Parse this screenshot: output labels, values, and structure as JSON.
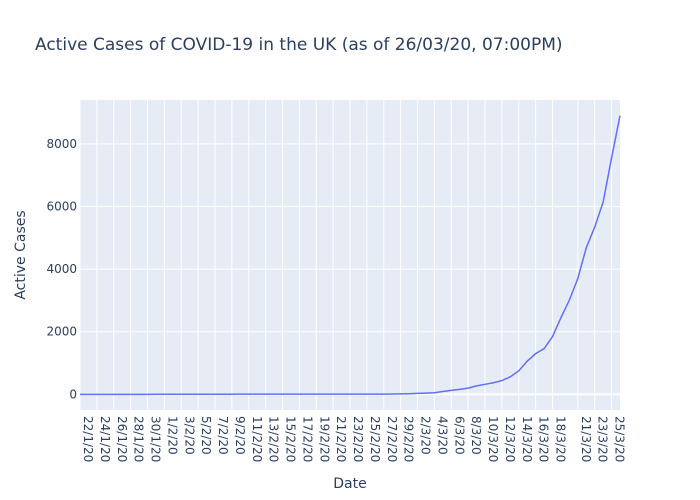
{
  "chart_data": {
    "type": "line",
    "title": "Active Cases of COVID-19 in the UK (as of 26/03/20, 07:00PM)",
    "xlabel": "Date",
    "ylabel": "Active Cases",
    "ylim": [
      -500,
      9400
    ],
    "yticks": [
      0,
      2000,
      4000,
      6000,
      8000
    ],
    "grid": true,
    "x_ticks": [
      "22/1/20",
      "24/1/20",
      "26/1/20",
      "28/1/20",
      "30/1/20",
      "1/2/20",
      "3/2/20",
      "5/2/20",
      "7/2/20",
      "9/2/20",
      "11/2/20",
      "13/2/20",
      "15/2/20",
      "17/2/20",
      "19/2/20",
      "21/2/20",
      "23/2/20",
      "25/2/20",
      "27/2/20",
      "29/2/20",
      "2/3/20",
      "4/3/20",
      "6/3/20",
      "8/3/20",
      "10/3/20",
      "12/3/20",
      "14/3/20",
      "16/3/20",
      "18/3/20",
      "21/3/20",
      "23/3/20",
      "25/3/20"
    ],
    "series": [
      {
        "color": "#636efa",
        "x": [
          "22/1/20",
          "23/1/20",
          "24/1/20",
          "25/1/20",
          "26/1/20",
          "27/1/20",
          "28/1/20",
          "29/1/20",
          "30/1/20",
          "31/1/20",
          "1/2/20",
          "2/2/20",
          "3/2/20",
          "4/2/20",
          "5/2/20",
          "6/2/20",
          "7/2/20",
          "8/2/20",
          "9/2/20",
          "10/2/20",
          "11/2/20",
          "12/2/20",
          "13/2/20",
          "14/2/20",
          "15/2/20",
          "16/2/20",
          "17/2/20",
          "18/2/20",
          "19/2/20",
          "20/2/20",
          "21/2/20",
          "22/2/20",
          "23/2/20",
          "24/2/20",
          "25/2/20",
          "26/2/20",
          "27/2/20",
          "28/2/20",
          "29/2/20",
          "1/3/20",
          "2/3/20",
          "3/3/20",
          "4/3/20",
          "5/3/20",
          "6/3/20",
          "7/3/20",
          "8/3/20",
          "9/3/20",
          "10/3/20",
          "11/3/20",
          "12/3/20",
          "13/3/20",
          "14/3/20",
          "15/3/20",
          "16/3/20",
          "17/3/20",
          "18/3/20",
          "19/3/20",
          "20/3/20",
          "21/3/20",
          "22/3/20",
          "23/3/20",
          "24/3/20",
          "25/3/20",
          "26/3/20"
        ],
        "values": [
          0,
          0,
          0,
          0,
          0,
          0,
          0,
          0,
          0,
          2,
          2,
          2,
          2,
          2,
          2,
          3,
          3,
          3,
          3,
          8,
          8,
          8,
          8,
          8,
          8,
          8,
          8,
          8,
          8,
          8,
          8,
          8,
          8,
          8,
          8,
          8,
          8,
          12,
          15,
          20,
          30,
          40,
          50,
          90,
          125,
          160,
          200,
          270,
          320,
          370,
          440,
          560,
          750,
          1060,
          1300,
          1460,
          1840,
          2450,
          3010,
          3700,
          4680,
          5340,
          6140,
          7550,
          8900
        ]
      }
    ]
  }
}
